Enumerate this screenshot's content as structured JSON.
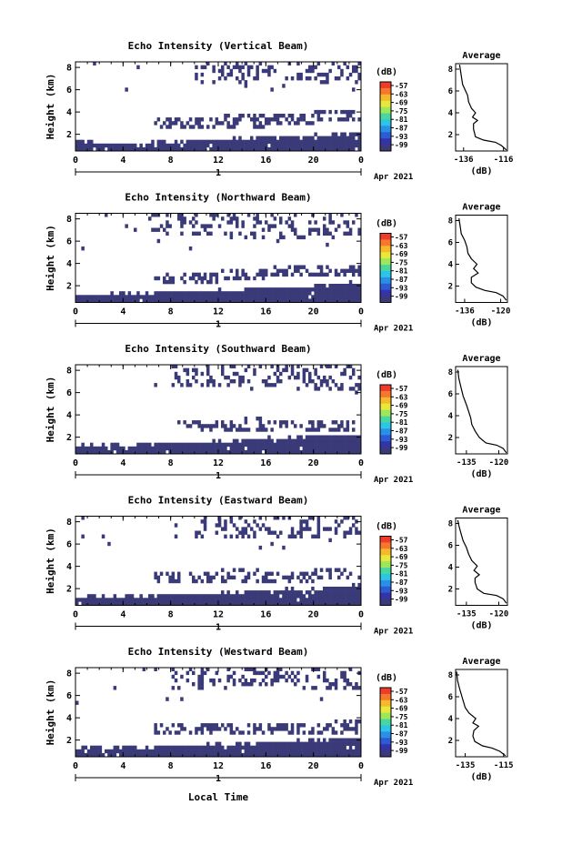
{
  "figure": {
    "xlabel": "Local Time",
    "ylabel": "Height (km)",
    "date_label": "Apr 2021",
    "day_tick": "1",
    "unit_label": "(dB)",
    "avg_title": "Average",
    "avg_xlabel": "(dB)"
  },
  "chart_data": [
    {
      "type": "heatmap",
      "title": "Echo Intensity (Vertical Beam)",
      "xlabel": "Local Time",
      "ylabel": "Height (km)",
      "x_ticks": [
        "0",
        "4",
        "8",
        "12",
        "16",
        "20",
        "0"
      ],
      "y_ticks": [
        "2",
        "4",
        "6",
        "8"
      ],
      "xlim": [
        0,
        24
      ],
      "ylim": [
        0.5,
        8.5
      ],
      "colorbar": {
        "label": "(dB)",
        "ticks": [
          "-57",
          "-63",
          "-69",
          "-75",
          "-81",
          "-87",
          "-93",
          "-99"
        ]
      },
      "surface_layer_top_km": [
        [
          0,
          1.3
        ],
        [
          4,
          1.2
        ],
        [
          8,
          1.3
        ],
        [
          12,
          1.5
        ],
        [
          16,
          1.8
        ],
        [
          20,
          1.9
        ],
        [
          24,
          2.1
        ]
      ],
      "middle_layer_km": [
        [
          10,
          3.0
        ],
        [
          14,
          3.2
        ],
        [
          18,
          3.4
        ],
        [
          22,
          3.6
        ]
      ],
      "upper_layer_km": [
        [
          14,
          7.8
        ],
        [
          18,
          7.9
        ],
        [
          22,
          7.6
        ]
      ],
      "average_profile": {
        "title": "Average",
        "xlabel": "(dB)",
        "x_ticks": [
          "-136",
          "-116"
        ],
        "y_ticks": [
          "2",
          "4",
          "6",
          "8"
        ],
        "xlim": [
          -140,
          -114
        ],
        "ylim": [
          0.5,
          8.5
        ],
        "values": [
          [
            -114.5,
            0.6
          ],
          [
            -117,
            1.0
          ],
          [
            -120,
            1.3
          ],
          [
            -126,
            1.5
          ],
          [
            -130,
            1.8
          ],
          [
            -131,
            2.5
          ],
          [
            -131,
            3.0
          ],
          [
            -129,
            3.3
          ],
          [
            -131.5,
            3.6
          ],
          [
            -130,
            4.0
          ],
          [
            -132,
            4.4
          ],
          [
            -133.5,
            5.0
          ],
          [
            -134,
            5.6
          ],
          [
            -135,
            6.0
          ],
          [
            -136.5,
            6.6
          ],
          [
            -137,
            7.2
          ],
          [
            -137.5,
            7.8
          ],
          [
            -138,
            8.4
          ]
        ]
      }
    },
    {
      "type": "heatmap",
      "title": "Echo Intensity (Northward Beam)",
      "xlabel": "Local Time",
      "ylabel": "Height (km)",
      "x_ticks": [
        "0",
        "4",
        "8",
        "12",
        "16",
        "20",
        "0"
      ],
      "y_ticks": [
        "2",
        "4",
        "6",
        "8"
      ],
      "xlim": [
        0,
        24
      ],
      "ylim": [
        0.5,
        8.5
      ],
      "colorbar": {
        "label": "(dB)",
        "ticks": [
          "-57",
          "-63",
          "-69",
          "-75",
          "-81",
          "-87",
          "-93",
          "-99"
        ]
      },
      "surface_layer_top_km": [
        [
          0,
          1.2
        ],
        [
          4,
          1.3
        ],
        [
          8,
          1.4
        ],
        [
          12,
          1.6
        ],
        [
          16,
          1.8
        ],
        [
          20,
          2.0
        ],
        [
          24,
          2.3
        ]
      ],
      "middle_layer_km": [
        [
          10,
          2.7
        ],
        [
          14,
          3.0
        ],
        [
          18,
          3.4
        ],
        [
          22,
          3.3
        ]
      ],
      "upper_layer_km": [
        [
          10,
          7.6
        ],
        [
          16,
          7.5
        ],
        [
          22,
          7.8
        ]
      ],
      "average_profile": {
        "title": "Average",
        "xlabel": "(dB)",
        "x_ticks": [
          "-136",
          "-120"
        ],
        "y_ticks": [
          "2",
          "4",
          "6",
          "8"
        ],
        "xlim": [
          -140,
          -117
        ],
        "ylim": [
          0.5,
          8.5
        ],
        "values": [
          [
            -117.5,
            0.7
          ],
          [
            -119,
            1.1
          ],
          [
            -122,
            1.4
          ],
          [
            -127,
            1.6
          ],
          [
            -131,
            1.9
          ],
          [
            -133,
            2.3
          ],
          [
            -133,
            2.8
          ],
          [
            -130,
            3.2
          ],
          [
            -132,
            3.6
          ],
          [
            -130.5,
            4.0
          ],
          [
            -133,
            4.5
          ],
          [
            -134.5,
            5.0
          ],
          [
            -135,
            5.6
          ],
          [
            -136,
            6.2
          ],
          [
            -137.5,
            6.8
          ],
          [
            -138,
            7.5
          ],
          [
            -138.5,
            8.2
          ]
        ]
      }
    },
    {
      "type": "heatmap",
      "title": "Echo Intensity (Southward Beam)",
      "xlabel": "Local Time",
      "ylabel": "Height (km)",
      "x_ticks": [
        "0",
        "4",
        "8",
        "12",
        "16",
        "20",
        "0"
      ],
      "y_ticks": [
        "2",
        "4",
        "6",
        "8"
      ],
      "xlim": [
        0,
        24
      ],
      "ylim": [
        0.5,
        8.5
      ],
      "colorbar": {
        "label": "(dB)",
        "ticks": [
          "-57",
          "-63",
          "-69",
          "-75",
          "-81",
          "-87",
          "-93",
          "-99"
        ]
      },
      "surface_layer_top_km": [
        [
          0,
          1.3
        ],
        [
          4,
          1.3
        ],
        [
          8,
          1.4
        ],
        [
          12,
          1.6
        ],
        [
          16,
          1.9
        ],
        [
          20,
          2.1
        ],
        [
          24,
          2.2
        ]
      ],
      "middle_layer_km": [
        [
          12,
          3.0
        ],
        [
          16,
          3.2
        ],
        [
          20,
          3.0
        ]
      ],
      "upper_layer_km": [
        [
          12,
          7.6
        ],
        [
          16,
          7.8
        ],
        [
          20,
          7.5
        ]
      ],
      "average_profile": {
        "title": "Average",
        "xlabel": "(dB)",
        "x_ticks": [
          "-135",
          "-120"
        ],
        "y_ticks": [
          "2",
          "4",
          "6",
          "8"
        ],
        "xlim": [
          -140,
          -116
        ],
        "ylim": [
          0.5,
          8.5
        ],
        "values": [
          [
            -116.5,
            0.6
          ],
          [
            -118,
            1.0
          ],
          [
            -121,
            1.3
          ],
          [
            -126,
            1.5
          ],
          [
            -129,
            2.0
          ],
          [
            -131,
            2.6
          ],
          [
            -132.5,
            3.2
          ],
          [
            -133,
            3.8
          ],
          [
            -134,
            4.4
          ],
          [
            -135,
            5.0
          ],
          [
            -136.5,
            5.8
          ],
          [
            -137.5,
            6.6
          ],
          [
            -138.5,
            7.4
          ],
          [
            -139,
            8.2
          ]
        ]
      }
    },
    {
      "type": "heatmap",
      "title": "Echo Intensity (Eastward Beam)",
      "xlabel": "Local Time",
      "ylabel": "Height (km)",
      "x_ticks": [
        "0",
        "4",
        "8",
        "12",
        "16",
        "20",
        "0"
      ],
      "y_ticks": [
        "2",
        "4",
        "6",
        "8"
      ],
      "xlim": [
        0,
        24
      ],
      "ylim": [
        0.5,
        8.5
      ],
      "colorbar": {
        "label": "(dB)",
        "ticks": [
          "-57",
          "-63",
          "-69",
          "-75",
          "-81",
          "-87",
          "-93",
          "-99"
        ]
      },
      "surface_layer_top_km": [
        [
          0,
          1.2
        ],
        [
          4,
          1.3
        ],
        [
          8,
          1.4
        ],
        [
          12,
          1.6
        ],
        [
          16,
          1.8
        ],
        [
          20,
          2.0
        ],
        [
          24,
          2.3
        ]
      ],
      "middle_layer_km": [
        [
          10,
          3.0
        ],
        [
          14,
          3.2
        ],
        [
          18,
          3.1
        ],
        [
          22,
          3.4
        ]
      ],
      "upper_layer_km": [
        [
          14,
          7.7
        ],
        [
          18,
          7.8
        ],
        [
          22,
          7.6
        ]
      ],
      "average_profile": {
        "title": "Average",
        "xlabel": "(dB)",
        "x_ticks": [
          "-135",
          "-120"
        ],
        "y_ticks": [
          "2",
          "4",
          "6",
          "8"
        ],
        "xlim": [
          -140,
          -116
        ],
        "ylim": [
          0.5,
          8.5
        ],
        "values": [
          [
            -116.5,
            0.7
          ],
          [
            -118,
            1.1
          ],
          [
            -121,
            1.4
          ],
          [
            -127,
            1.6
          ],
          [
            -130,
            2.0
          ],
          [
            -131,
            2.6
          ],
          [
            -131,
            3.0
          ],
          [
            -129,
            3.3
          ],
          [
            -131.5,
            3.7
          ],
          [
            -130,
            4.1
          ],
          [
            -132.5,
            4.6
          ],
          [
            -134,
            5.2
          ],
          [
            -135,
            5.8
          ],
          [
            -136.5,
            6.4
          ],
          [
            -137.5,
            7.1
          ],
          [
            -138.5,
            7.8
          ],
          [
            -139,
            8.3
          ]
        ]
      }
    },
    {
      "type": "heatmap",
      "title": "Echo Intensity (Westward Beam)",
      "xlabel": "Local Time",
      "ylabel": "Height (km)",
      "x_ticks": [
        "0",
        "4",
        "8",
        "12",
        "16",
        "20",
        "0"
      ],
      "y_ticks": [
        "2",
        "4",
        "6",
        "8"
      ],
      "xlim": [
        0,
        24
      ],
      "ylim": [
        0.5,
        8.5
      ],
      "colorbar": {
        "label": "(dB)",
        "ticks": [
          "-57",
          "-63",
          "-69",
          "-75",
          "-81",
          "-87",
          "-93",
          "-99"
        ]
      },
      "surface_layer_top_km": [
        [
          0,
          1.3
        ],
        [
          4,
          1.3
        ],
        [
          8,
          1.4
        ],
        [
          12,
          1.6
        ],
        [
          16,
          1.8
        ],
        [
          20,
          2.0
        ],
        [
          24,
          2.2
        ]
      ],
      "middle_layer_km": [
        [
          10,
          3.0
        ],
        [
          14,
          3.1
        ],
        [
          18,
          3.0
        ],
        [
          22,
          3.2
        ]
      ],
      "upper_layer_km": [
        [
          12,
          7.6
        ],
        [
          16,
          7.9
        ],
        [
          22,
          7.7
        ]
      ],
      "average_profile": {
        "title": "Average",
        "xlabel": "(dB)",
        "x_ticks": [
          "-135",
          "-115"
        ],
        "y_ticks": [
          "2",
          "4",
          "6",
          "8"
        ],
        "xlim": [
          -140,
          -113
        ],
        "ylim": [
          0.5,
          8.5
        ],
        "values": [
          [
            -114,
            0.6
          ],
          [
            -117,
            1.0
          ],
          [
            -121,
            1.3
          ],
          [
            -126,
            1.5
          ],
          [
            -130,
            1.9
          ],
          [
            -131,
            2.4
          ],
          [
            -130.5,
            2.9
          ],
          [
            -128,
            3.3
          ],
          [
            -131,
            3.6
          ],
          [
            -129.5,
            4.0
          ],
          [
            -133,
            4.5
          ],
          [
            -135,
            5.0
          ],
          [
            -136,
            5.6
          ],
          [
            -137,
            6.2
          ],
          [
            -138,
            6.8
          ],
          [
            -139,
            7.5
          ],
          [
            -139.5,
            8.3
          ]
        ]
      }
    }
  ]
}
